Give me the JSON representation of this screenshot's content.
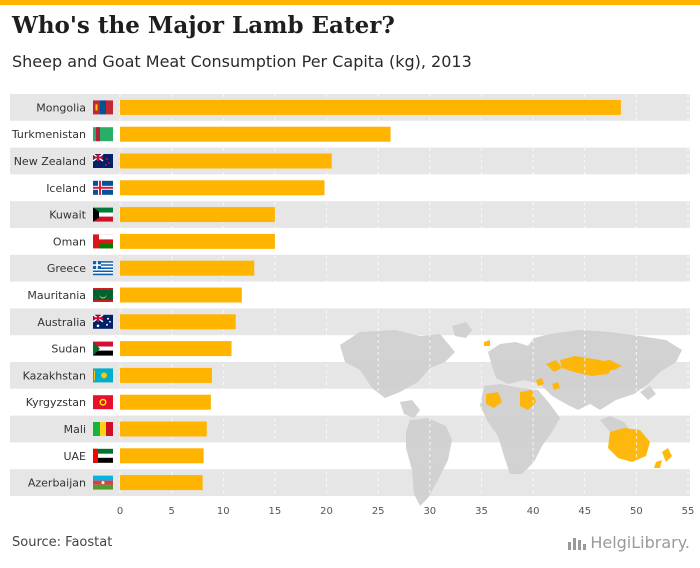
{
  "header": {
    "title": "Who's the Major Lamb Eater?",
    "subtitle": "Sheep and Goat Meat Consumption Per Capita (kg), 2013"
  },
  "footer": {
    "source": "Source: Faostat",
    "brand": "HelgiLibrary."
  },
  "colors": {
    "accent": "#ffb400",
    "stripe": "#e6e6e6",
    "map_land": "#d0d0d0",
    "map_highlight": "#ffb400"
  },
  "map": {
    "description_icon": "world-map-icon"
  },
  "chart_data": {
    "type": "bar",
    "orientation": "horizontal",
    "title": "Who's the Major Lamb Eater?",
    "subtitle": "Sheep and Goat Meat Consumption Per Capita (kg), 2013",
    "xlabel": "",
    "ylabel": "",
    "xlim": [
      0,
      55
    ],
    "ticks": [
      0,
      5,
      10,
      15,
      20,
      25,
      30,
      35,
      40,
      45,
      50,
      55
    ],
    "categories": [
      "Mongolia",
      "Turkmenistan",
      "New Zealand",
      "Iceland",
      "Kuwait",
      "Oman",
      "Greece",
      "Mauritania",
      "Australia",
      "Sudan",
      "Kazakhstan",
      "Kyrgyzstan",
      "Mali",
      "UAE",
      "Azerbaijan"
    ],
    "values": [
      48.5,
      26.2,
      20.5,
      19.8,
      15.0,
      15.0,
      13.0,
      11.8,
      11.2,
      10.8,
      8.9,
      8.8,
      8.4,
      8.1,
      8.0
    ],
    "flags": [
      "mongolia-flag",
      "turkmenistan-flag",
      "new-zealand-flag",
      "iceland-flag",
      "kuwait-flag",
      "oman-flag",
      "greece-flag",
      "mauritania-flag",
      "australia-flag",
      "sudan-flag",
      "kazakhstan-flag",
      "kyrgyzstan-flag",
      "mali-flag",
      "uae-flag",
      "azerbaijan-flag"
    ],
    "grid": true
  }
}
